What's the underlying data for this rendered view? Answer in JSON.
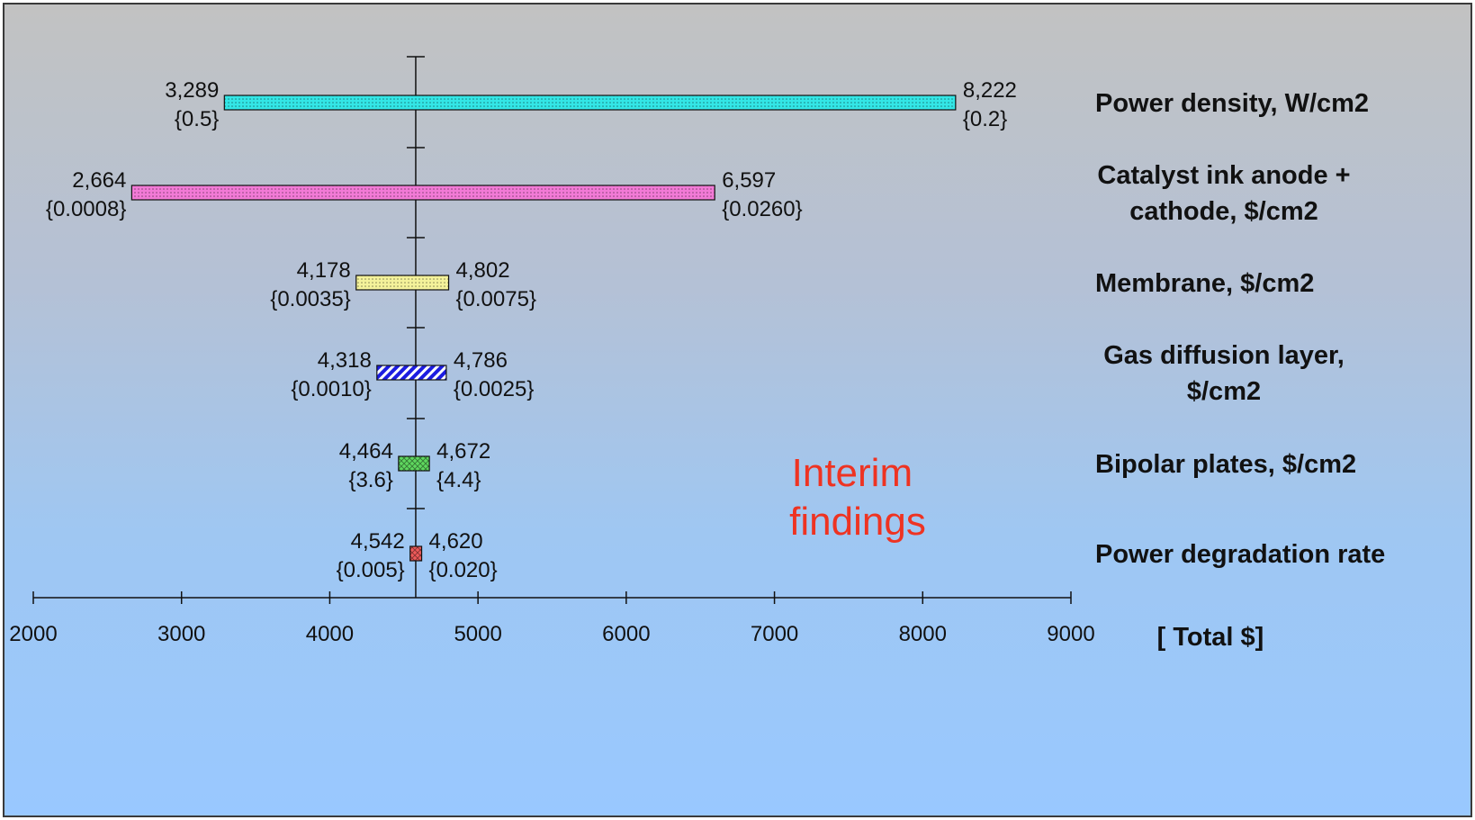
{
  "chart_data": {
    "type": "tornado",
    "baseline": 4580,
    "x_axis": {
      "min": 2000,
      "max": 9000,
      "ticks": [
        2000,
        3000,
        4000,
        5000,
        6000,
        7000,
        8000,
        9000
      ],
      "tick_labels": [
        "2000",
        "3000",
        "4000",
        "5000",
        "6000",
        "7000",
        "8000",
        "9000"
      ],
      "unit_label": "[ Total $]"
    },
    "annotation": "Interim findings",
    "bars": [
      {
        "category": [
          "Power density, W/cm2"
        ],
        "low": 3289,
        "high": 8222,
        "low_label": "3,289",
        "high_label": "8,222",
        "low_param": "{0.5}",
        "high_param": "{0.2}",
        "color": "#33e6e6",
        "pattern": "dots"
      },
      {
        "category": [
          "Catalyst ink anode +",
          "cathode, $/cm2"
        ],
        "low": 2664,
        "high": 6597,
        "low_label": "2,664",
        "high_label": "6,597",
        "low_param": "{0.0008}",
        "high_param": "{0.0260}",
        "color": "#f27ad6",
        "pattern": "dots"
      },
      {
        "category": [
          "Membrane, $/cm2"
        ],
        "low": 4178,
        "high": 4802,
        "low_label": "4,178",
        "high_label": "4,802",
        "low_param": "{0.0035}",
        "high_param": "{0.0075}",
        "color": "#f4f29a",
        "pattern": "dots"
      },
      {
        "category": [
          "Gas diffusion layer,",
          "$/cm2"
        ],
        "low": 4318,
        "high": 4786,
        "low_label": "4,318",
        "high_label": "4,786",
        "low_param": "{0.0010}",
        "high_param": "{0.0025}",
        "color": "#1c1ce0",
        "pattern": "hatch"
      },
      {
        "category": [
          "Bipolar plates, $/cm2"
        ],
        "low": 4464,
        "high": 4672,
        "low_label": "4,464",
        "high_label": "4,672",
        "low_param": "{3.6}",
        "high_param": "{4.4}",
        "color": "#5fd85f",
        "pattern": "cross"
      },
      {
        "category": [
          "Power degradation rate"
        ],
        "low": 4542,
        "high": 4620,
        "low_label": "4,542",
        "high_label": "4,620",
        "low_param": "{0.005}",
        "high_param": "{0.020}",
        "color": "#ee5a5a",
        "pattern": "cross"
      }
    ]
  }
}
